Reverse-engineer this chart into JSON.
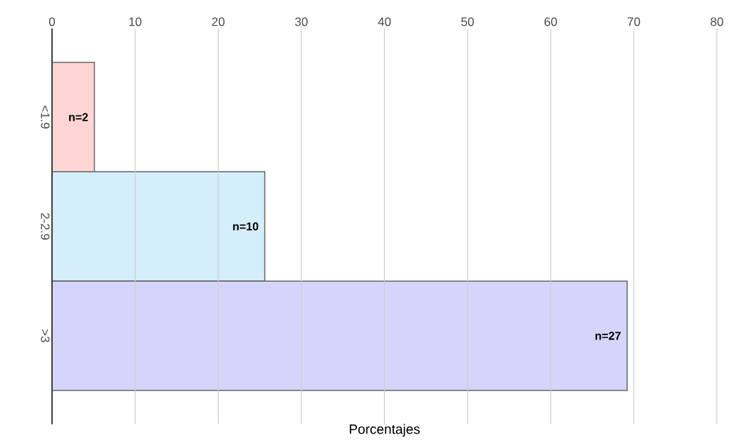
{
  "chart_data": {
    "type": "bar",
    "orientation": "horizontal",
    "xlabel": "Porcentajes",
    "categories": [
      "<1.9",
      "2-2.9",
      ">3"
    ],
    "values": [
      5.1,
      25.6,
      69.2
    ],
    "colors": [
      "#ffd5d5",
      "#d5eefc",
      "#d5d5fc"
    ],
    "xlim": [
      0,
      80
    ],
    "xticks": [
      0,
      10,
      20,
      30,
      40,
      50,
      60,
      70,
      80
    ],
    "grid": "x",
    "annotations": [
      "n=2",
      "n=10",
      "n=27"
    ]
  }
}
